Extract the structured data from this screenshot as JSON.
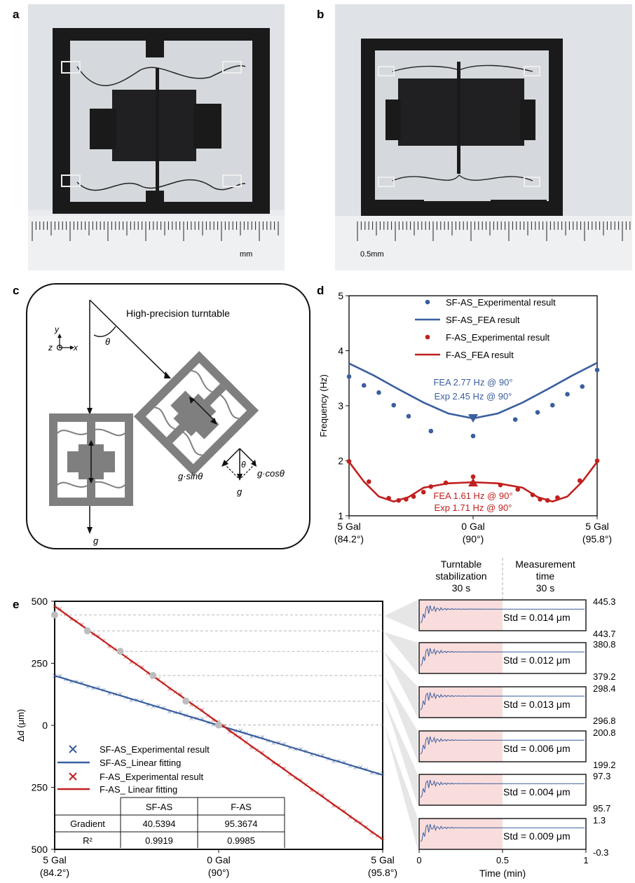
{
  "panel_labels": {
    "a": "a",
    "b": "b",
    "c": "c",
    "d": "d",
    "e": "e"
  },
  "photo_a": {
    "ruler_unit": "mm"
  },
  "photo_b": {
    "ruler_unit": "0.5mm"
  },
  "diagram_c": {
    "title": "High-precision turntable",
    "theta": "θ",
    "axis_y": "y",
    "axis_z": "z",
    "axis_x": "x",
    "g": "g",
    "g_sin": "g·sinθ",
    "g_cos": "g·cosθ"
  },
  "chart_data": [
    {
      "id": "d",
      "type": "line",
      "xlabel_ticks": [
        "5 Gal\n(84.2°)",
        "0 Gal\n(90°)",
        "5 Gal\n(95.8°)"
      ],
      "ylabel": "Frequency (Hz)",
      "ylim": [
        1,
        5
      ],
      "yticks": [
        1,
        2,
        3,
        4,
        5
      ],
      "xlim": [
        -5,
        5
      ],
      "legend": [
        "SF-AS_Experimental result",
        "SF-AS_FEA result",
        "F-AS_Experimental result",
        "F-AS_FEA result"
      ],
      "legend_position": "top-right",
      "annotations": {
        "sf": [
          "FEA 2.77 Hz @ 90°",
          "Exp 2.45 Hz @ 90°"
        ],
        "f": [
          "FEA 1.61 Hz @ 90°",
          "Exp 1.71 Hz @ 90°"
        ]
      },
      "series": [
        {
          "name": "SF-AS_Experimental result",
          "color": "#3a5f9e",
          "x": [
            -5,
            -4.4,
            -3.8,
            -3.2,
            -2.6,
            -1.7,
            0,
            1.7,
            2.6,
            3.2,
            3.8,
            4.4,
            5
          ],
          "y": [
            3.53,
            3.37,
            3.24,
            3.01,
            2.81,
            2.54,
            2.45,
            2.75,
            2.88,
            3.01,
            3.21,
            3.35,
            3.65
          ]
        },
        {
          "name": "SF-AS_FEA result",
          "color": "#3a5f9e",
          "x": [
            -5,
            -4,
            -3,
            -2,
            -1,
            0,
            1,
            2,
            3,
            4,
            5
          ],
          "y": [
            3.77,
            3.55,
            3.3,
            3.06,
            2.86,
            2.77,
            2.86,
            3.06,
            3.3,
            3.55,
            3.78
          ]
        },
        {
          "name": "F-AS_Experimental result",
          "color": "#c0201f",
          "x": [
            -5,
            -4.2,
            -3.4,
            -3.0,
            -2.7,
            -2.4,
            -2.0,
            -1.7,
            -1.1,
            0,
            1.1,
            1.8,
            2.4,
            2.7,
            3.0,
            3.4,
            4.3,
            5
          ],
          "y": [
            1.99,
            1.62,
            1.32,
            1.28,
            1.3,
            1.35,
            1.43,
            1.53,
            1.6,
            1.71,
            1.56,
            1.48,
            1.38,
            1.3,
            1.28,
            1.33,
            1.64,
            2.0
          ]
        },
        {
          "name": "F-AS_FEA result",
          "color": "#c0201f",
          "x": [
            -5,
            -4.4,
            -3.8,
            -3.2,
            -2.6,
            -2,
            -1,
            0,
            1,
            2,
            2.6,
            3.2,
            3.8,
            4.4,
            5
          ],
          "y": [
            1.98,
            1.62,
            1.35,
            1.26,
            1.34,
            1.51,
            1.59,
            1.61,
            1.59,
            1.51,
            1.34,
            1.26,
            1.35,
            1.62,
            1.98
          ]
        }
      ],
      "markers": [
        {
          "series": "SF-AS_FEA result",
          "x": 0,
          "y": 2.77,
          "shape": "triangle-down"
        },
        {
          "series": "F-AS_FEA result",
          "x": 0,
          "y": 1.61,
          "shape": "triangle-up"
        }
      ]
    },
    {
      "id": "e",
      "type": "line",
      "ylabel": "Δd (μm)",
      "ylim": [
        -500,
        500
      ],
      "ytick_labels": [
        "500",
        "250",
        "0",
        "250",
        "500"
      ],
      "yticks": [
        500,
        250,
        0,
        -250,
        -500
      ],
      "xlim": [
        -5,
        5
      ],
      "xtick_labels": [
        "5 Gal\n(84.2°)",
        "0 Gal\n(90°)",
        "5 Gal\n(95.8°)"
      ],
      "legend": [
        "SF-AS_Experimental result",
        "SF-AS_Linear fitting",
        "F-AS_Experimental result",
        "F-AS_ Linear fitting"
      ],
      "legend_position": "bottom-left",
      "series": [
        {
          "name": "SF-AS_Linear fitting",
          "color": "#3a5f9e",
          "x": [
            -5,
            5
          ],
          "y": [
            200,
            -200
          ]
        },
        {
          "name": "F-AS_ Linear fitting",
          "color": "#c0201f",
          "x": [
            -5,
            5
          ],
          "y": [
            480,
            -460
          ]
        }
      ],
      "gray_points": [
        {
          "x": -5,
          "y": 445.3
        },
        {
          "x": -4,
          "y": 380.8
        },
        {
          "x": -3,
          "y": 298.4
        },
        {
          "x": -2,
          "y": 200.8
        },
        {
          "x": -1,
          "y": 97.3
        },
        {
          "x": 0,
          "y": 1.3
        }
      ],
      "table": {
        "headers": [
          "",
          "SF-AS",
          "F-AS"
        ],
        "rows": [
          [
            "Gradient",
            "40.5394",
            "95.3674"
          ],
          [
            "R²",
            "0.9919",
            "0.9985"
          ]
        ]
      }
    },
    {
      "id": "e-insets",
      "type": "line",
      "header_left": [
        "Turntable",
        "stabilization",
        "30 s"
      ],
      "header_right": [
        "Measurement",
        "time",
        "30 s"
      ],
      "xlabel": "Time (min)",
      "xticks": [
        "0",
        "0.5",
        "1"
      ],
      "xlim": [
        0,
        1
      ],
      "insets": [
        {
          "top": "445.3",
          "bottom": "443.7",
          "std": "Std = 0.014 μm"
        },
        {
          "top": "380.8",
          "bottom": "379.2",
          "std": "Std = 0.012 μm"
        },
        {
          "top": "298.4",
          "bottom": "296.8",
          "std": "Std = 0.013 μm"
        },
        {
          "top": "200.8",
          "bottom": "199.2",
          "std": "Std = 0.006 μm"
        },
        {
          "top": "97.3",
          "bottom": "95.7",
          "std": "Std = 0.004 μm"
        },
        {
          "top": "1.3",
          "bottom": "-0.3",
          "std": "Std = 0.009 μm"
        }
      ]
    }
  ]
}
